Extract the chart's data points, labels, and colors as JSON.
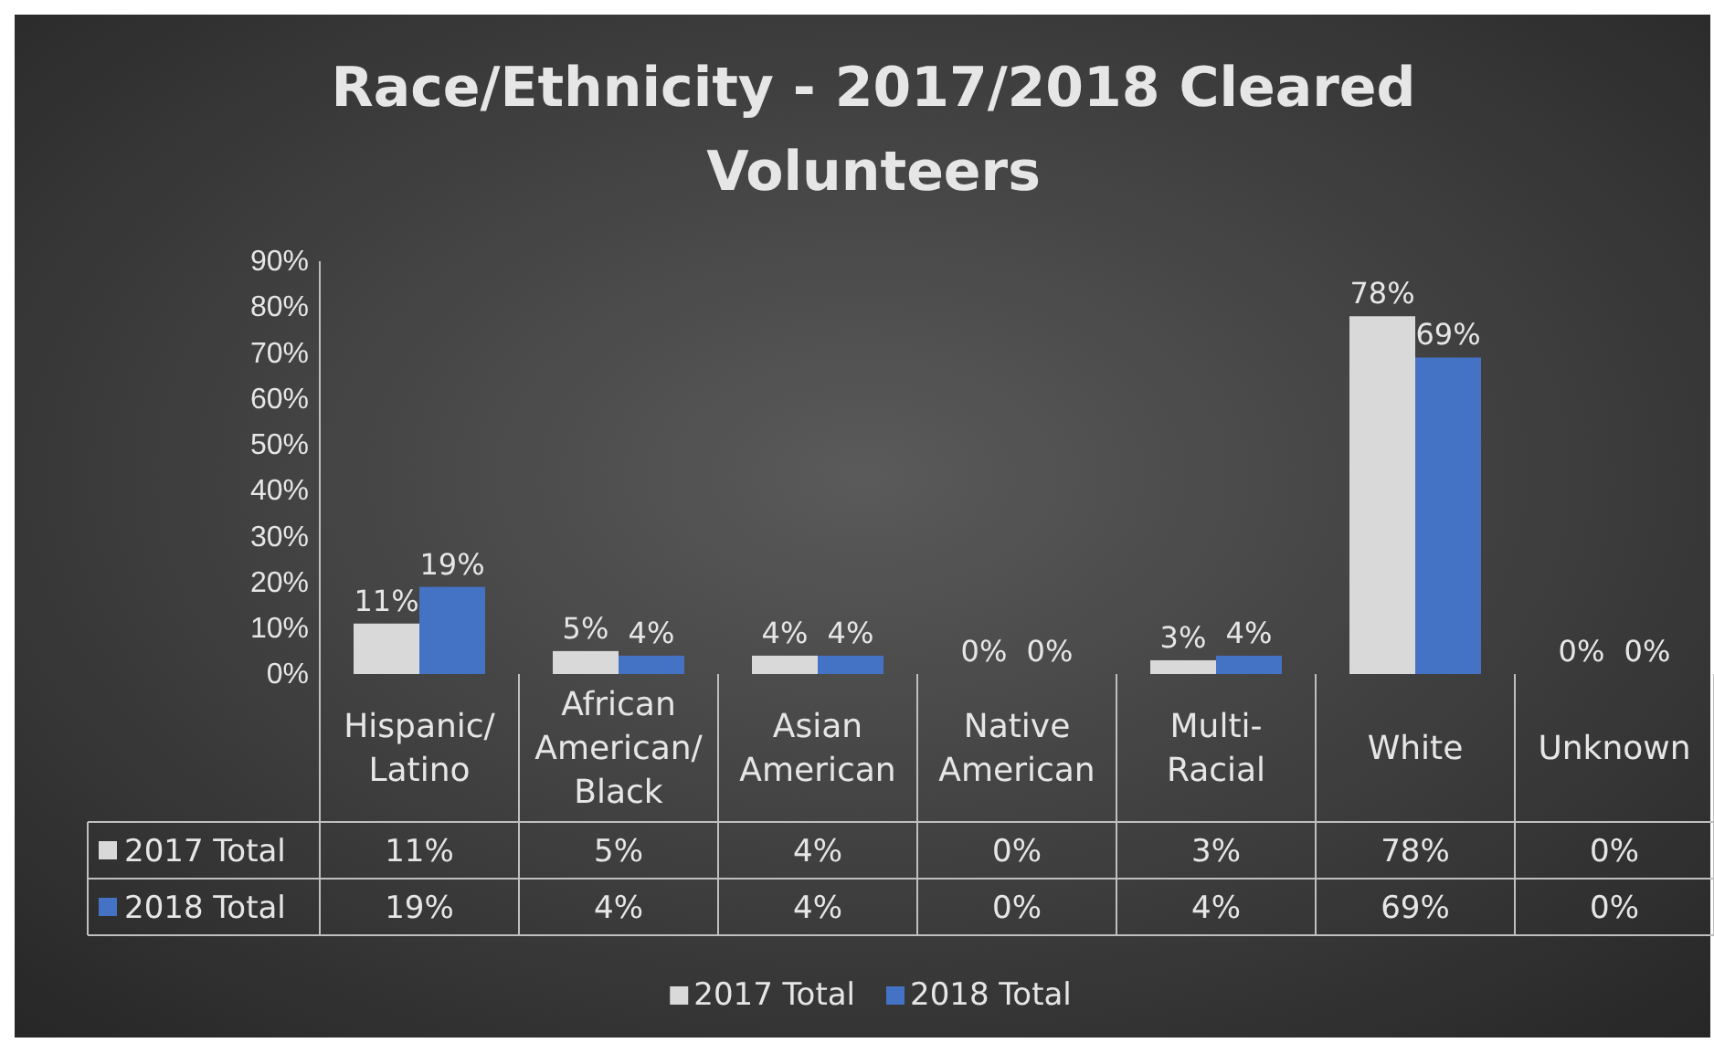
{
  "chart_data": {
    "type": "bar",
    "title": "Race/Ethnicity - 2017/2018 Cleared Volunteers",
    "categories": [
      "Hispanic/Latino",
      "African American/Black",
      "Asian American",
      "Native American",
      "Multi-Racial",
      "White",
      "Unknown"
    ],
    "series": [
      {
        "name": "2017 Total",
        "color": "#d9d9d9",
        "values": [
          11,
          5,
          4,
          0,
          3,
          78,
          0
        ],
        "value_labels": [
          "11%",
          "5%",
          "4%",
          "0%",
          "3%",
          "78%",
          "0%"
        ]
      },
      {
        "name": "2018 Total",
        "color": "#4472c4",
        "values": [
          19,
          4,
          4,
          0,
          4,
          69,
          0
        ],
        "value_labels": [
          "19%",
          "4%",
          "4%",
          "0%",
          "4%",
          "69%",
          "0%"
        ]
      }
    ],
    "ylim": [
      0,
      90
    ],
    "yticks": [
      {
        "value": 0,
        "label": "0%"
      },
      {
        "value": 10,
        "label": "10%"
      },
      {
        "value": 20,
        "label": "20%"
      },
      {
        "value": 30,
        "label": "30%"
      },
      {
        "value": 40,
        "label": "40%"
      },
      {
        "value": 50,
        "label": "50%"
      },
      {
        "value": 60,
        "label": "60%"
      },
      {
        "value": 70,
        "label": "70%"
      },
      {
        "value": 80,
        "label": "80%"
      },
      {
        "value": 90,
        "label": "90%"
      }
    ],
    "legend": "bottom",
    "grid": false
  }
}
